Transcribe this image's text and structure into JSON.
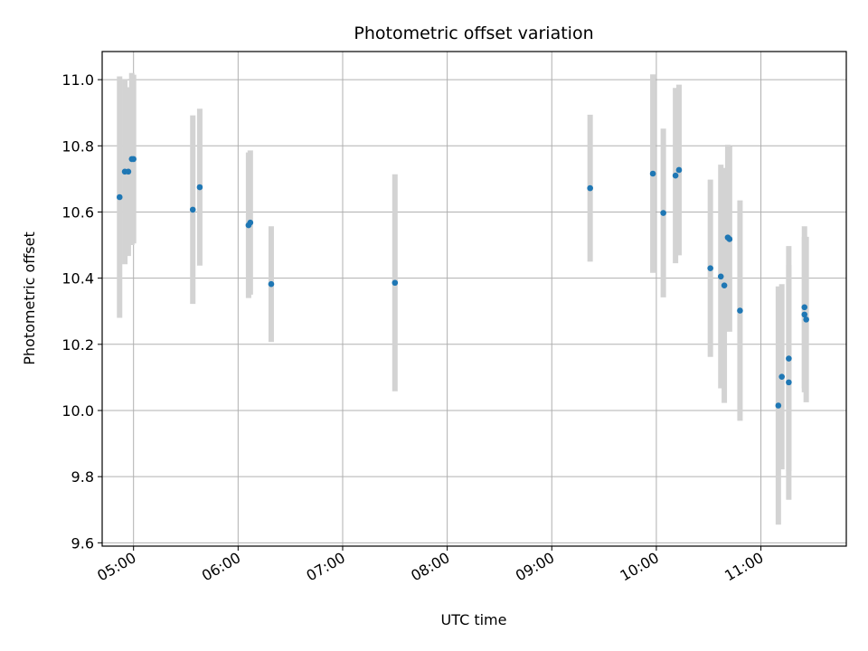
{
  "chart_data": {
    "type": "scatter",
    "title": "Photometric offset variation",
    "xlabel": "UTC time",
    "ylabel": "Photometric offset",
    "x_ticks": [
      "05:00",
      "06:00",
      "07:00",
      "08:00",
      "09:00",
      "10:00",
      "11:00"
    ],
    "x_tick_hours": [
      5,
      6,
      7,
      8,
      9,
      10,
      11
    ],
    "y_ticks": [
      9.6,
      9.8,
      10.0,
      10.2,
      10.4,
      10.6,
      10.8,
      11.0
    ],
    "xlim": [
      "04:42",
      "11:49"
    ],
    "ylim": [
      9.59,
      11.085
    ],
    "grid": true,
    "marker_color": "#1f77b4",
    "errorbar_color": "#d3d3d3",
    "points": [
      {
        "time": "04:52",
        "value": 10.645,
        "err": 0.365
      },
      {
        "time": "04:55",
        "value": 10.722,
        "err": 0.28
      },
      {
        "time": "04:57",
        "value": 10.722,
        "err": 0.255
      },
      {
        "time": "04:59",
        "value": 10.76,
        "err": 0.26
      },
      {
        "time": "05:00",
        "value": 10.76,
        "err": 0.255
      },
      {
        "time": "05:34",
        "value": 10.607,
        "err": 0.285
      },
      {
        "time": "05:38",
        "value": 10.675,
        "err": 0.237
      },
      {
        "time": "06:06",
        "value": 10.56,
        "err": 0.22
      },
      {
        "time": "06:07",
        "value": 10.568,
        "err": 0.218
      },
      {
        "time": "06:19",
        "value": 10.382,
        "err": 0.175
      },
      {
        "time": "07:30",
        "value": 10.386,
        "err": 0.328
      },
      {
        "time": "09:22",
        "value": 10.672,
        "err": 0.222
      },
      {
        "time": "09:58",
        "value": 10.716,
        "err": 0.3
      },
      {
        "time": "10:04",
        "value": 10.597,
        "err": 0.255
      },
      {
        "time": "10:11",
        "value": 10.71,
        "err": 0.265
      },
      {
        "time": "10:13",
        "value": 10.727,
        "err": 0.258
      },
      {
        "time": "10:31",
        "value": 10.43,
        "err": 0.268
      },
      {
        "time": "10:37",
        "value": 10.405,
        "err": 0.338
      },
      {
        "time": "10:39",
        "value": 10.378,
        "err": 0.355
      },
      {
        "time": "10:41",
        "value": 10.523,
        "err": 0.28
      },
      {
        "time": "10:42",
        "value": 10.518,
        "err": 0.28
      },
      {
        "time": "10:48",
        "value": 10.302,
        "err": 0.333
      },
      {
        "time": "11:10",
        "value": 10.015,
        "err": 0.36
      },
      {
        "time": "11:12",
        "value": 10.102,
        "err": 0.28
      },
      {
        "time": "11:16",
        "value": 10.085,
        "err": 0.355
      },
      {
        "time": "11:16",
        "value": 10.157,
        "err": 0.34
      },
      {
        "time": "11:25",
        "value": 10.312,
        "err": 0.245
      },
      {
        "time": "11:25",
        "value": 10.29,
        "err": 0.235
      },
      {
        "time": "11:26",
        "value": 10.275,
        "err": 0.25
      }
    ]
  }
}
